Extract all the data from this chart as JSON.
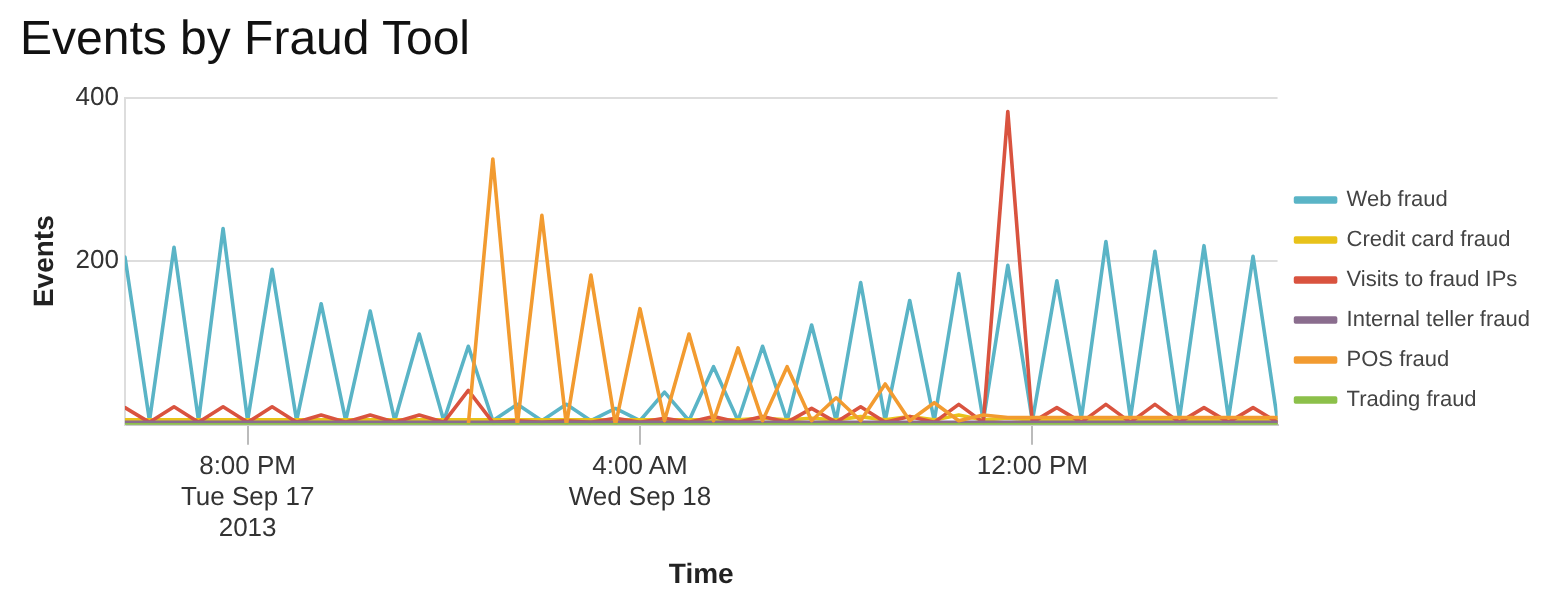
{
  "chart_data": {
    "type": "line",
    "title": "Events by Fraud Tool",
    "xlabel": "Time",
    "ylabel": "Events",
    "x": [
      "2013-09-17T17:30",
      "2013-09-17T18:00",
      "2013-09-17T18:30",
      "2013-09-17T19:00",
      "2013-09-17T19:30",
      "2013-09-17T20:00",
      "2013-09-17T20:30",
      "2013-09-17T21:00",
      "2013-09-17T21:30",
      "2013-09-17T22:00",
      "2013-09-17T22:30",
      "2013-09-17T23:00",
      "2013-09-17T23:30",
      "2013-09-18T00:00",
      "2013-09-18T00:30",
      "2013-09-18T01:00",
      "2013-09-18T01:30",
      "2013-09-18T02:00",
      "2013-09-18T02:30",
      "2013-09-18T03:00",
      "2013-09-18T03:30",
      "2013-09-18T04:00",
      "2013-09-18T04:30",
      "2013-09-18T05:00",
      "2013-09-18T05:30",
      "2013-09-18T06:00",
      "2013-09-18T06:30",
      "2013-09-18T07:00",
      "2013-09-18T07:30",
      "2013-09-18T08:00",
      "2013-09-18T08:30",
      "2013-09-18T09:00",
      "2013-09-18T09:30",
      "2013-09-18T10:00",
      "2013-09-18T10:30",
      "2013-09-18T11:00",
      "2013-09-18T11:30",
      "2013-09-18T12:00",
      "2013-09-18T12:30",
      "2013-09-18T13:00",
      "2013-09-18T13:30",
      "2013-09-18T14:00",
      "2013-09-18T14:30",
      "2013-09-18T15:00",
      "2013-09-18T15:30",
      "2013-09-18T16:00",
      "2013-09-18T16:30",
      "2013-09-18T17:00"
    ],
    "series": [
      {
        "name": "Web fraud",
        "color": "#5ab4c6",
        "values": [
          205,
          5,
          217,
          5,
          240,
          5,
          190,
          5,
          148,
          5,
          139,
          5,
          111,
          5,
          96,
          5,
          25,
          5,
          25,
          5,
          20,
          5,
          40,
          5,
          71,
          5,
          96,
          5,
          122,
          5,
          174,
          5,
          152,
          5,
          185,
          5,
          195,
          5,
          176,
          8,
          224,
          8,
          212,
          8,
          219,
          8,
          206,
          5
        ]
      },
      {
        "name": "Credit card fraud",
        "color": "#e8c21a",
        "values": [
          6,
          6,
          6,
          6,
          6,
          6,
          6,
          6,
          6,
          6,
          6,
          6,
          6,
          6,
          6,
          6,
          6,
          6,
          6,
          6,
          6,
          6,
          6,
          6,
          6,
          6,
          8,
          6,
          8,
          6,
          10,
          6,
          10,
          6,
          12,
          6,
          8,
          6,
          6,
          6,
          6,
          6,
          6,
          6,
          6,
          6,
          6,
          6
        ]
      },
      {
        "name": "Visits to fraud IPs",
        "color": "#d9533f",
        "values": [
          21,
          3,
          22,
          3,
          22,
          3,
          22,
          3,
          12,
          3,
          12,
          3,
          12,
          3,
          42,
          3,
          5,
          3,
          5,
          3,
          8,
          3,
          8,
          3,
          10,
          3,
          10,
          3,
          20,
          3,
          22,
          3,
          10,
          3,
          25,
          3,
          383,
          3,
          21,
          3,
          25,
          3,
          25,
          3,
          21,
          3,
          21,
          3
        ]
      },
      {
        "name": "Internal teller fraud",
        "color": "#8a6d8e",
        "values": [
          3,
          3,
          3,
          3,
          3,
          3,
          3,
          3,
          3,
          3,
          3,
          3,
          3,
          3,
          3,
          3,
          3,
          3,
          3,
          3,
          3,
          3,
          3,
          3,
          3,
          3,
          3,
          3,
          3,
          3,
          3,
          3,
          3,
          3,
          3,
          3,
          3,
          3,
          3,
          3,
          3,
          3,
          3,
          3,
          3,
          3,
          3,
          3
        ]
      },
      {
        "name": "POS fraud",
        "color": "#f29b30",
        "values": [
          null,
          null,
          null,
          null,
          null,
          null,
          null,
          null,
          null,
          null,
          null,
          null,
          null,
          null,
          0,
          325,
          0,
          256,
          0,
          183,
          0,
          142,
          5,
          111,
          5,
          94,
          5,
          71,
          5,
          33,
          5,
          50,
          5,
          27,
          5,
          12,
          9,
          9,
          9,
          9,
          9,
          9,
          9,
          9,
          9,
          9,
          9,
          9
        ]
      },
      {
        "name": "Trading fraud",
        "color": "#8cc04a",
        "values": [
          0,
          0,
          0,
          0,
          0,
          0,
          0,
          0,
          0,
          0,
          0,
          0,
          0,
          0,
          0,
          0,
          0,
          0,
          0,
          0,
          0,
          0,
          0,
          0,
          0,
          0,
          0,
          0,
          0,
          0,
          0,
          0,
          0,
          0,
          0,
          0,
          0,
          0,
          0,
          0,
          0,
          0,
          0,
          0,
          0,
          0,
          0,
          0
        ]
      }
    ],
    "xlim": [
      "2013-09-17T17:30",
      "2013-09-18T17:00"
    ],
    "xticks": [
      {
        "value": "2013-09-17T20:00",
        "label": "8:00 PM\nTue Sep 17\n2013"
      },
      {
        "value": "2013-09-18T04:00",
        "label": "4:00 AM\nWed Sep 18"
      },
      {
        "value": "2013-09-18T12:00",
        "label": "12:00 PM"
      }
    ],
    "ylim": [
      0,
      400
    ],
    "yticks": [
      {
        "value": 0,
        "label": null
      },
      200,
      400
    ],
    "grid": "y",
    "legend": "right",
    "marker": "none",
    "line_style": "solid"
  }
}
